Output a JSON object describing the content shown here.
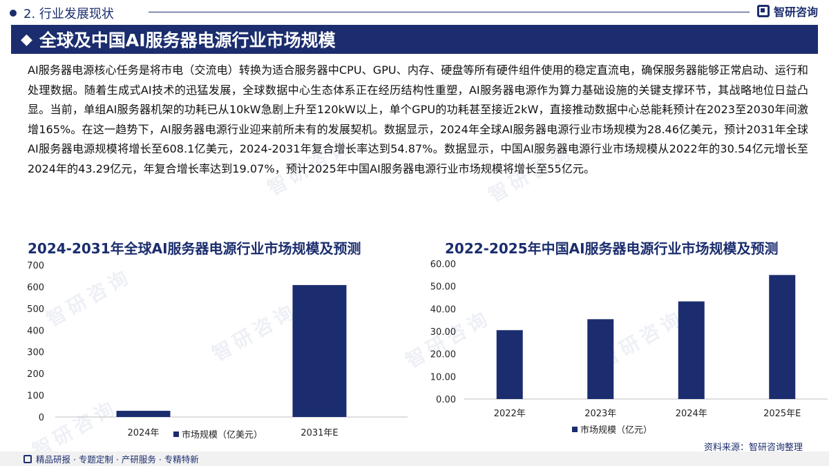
{
  "header": {
    "section": "2. 行业发展现状",
    "brand": "智研咨询"
  },
  "title": "全球及中国AI服务器电源行业市场规模",
  "intro": "AI服务器电源核心任务是将市电（交流电）转换为适合服务器中CPU、GPU、内存、硬盘等所有硬件组件使用的稳定直流电，确保服务器能够正常启动、运行和处理数据。随着生成式AI技术的迅猛发展，全球数据中心生态体系正在经历结构性重塑，AI服务器电源作为算力基础设施的关键支撑环节，其战略地位日益凸显。当前，单组AI服务器机架的功耗已从10kW急剧上升至120kW以上，单个GPU的功耗甚至接近2kW，直接推动数据中心总能耗预计在2023至2030年间激增165%。在这一趋势下，AI服务器电源行业迎来前所未有的发展契机。数据显示，2024年全球AI服务器电源行业市场规模为28.46亿美元，预计2031年全球AI服务器电源规模将增长至608.1亿美元，2024-2031年复合增长率达到54.87%。数据显示，中国AI服务器电源行业市场规模从2022年的30.54亿元增长至2024年的43.29亿元，年复合增长率达到19.07%，预计2025年中国AI服务器电源行业市场规模将增长至55亿元。",
  "chart_data": [
    {
      "type": "bar",
      "title": "2024-2031年全球AI服务器电源行业市场规模及预测",
      "categories": [
        "2024年",
        "2031年E"
      ],
      "series": [
        {
          "name": "市场规模（亿美元）",
          "values": [
            28.46,
            608.1
          ]
        }
      ],
      "ylim": [
        0,
        700
      ],
      "yticks": [
        "0",
        "100",
        "200",
        "300",
        "400",
        "500",
        "600",
        "700"
      ],
      "grid": false,
      "legend": "bottom",
      "color": "#1b2d6e"
    },
    {
      "type": "bar",
      "title": "2022-2025年中国AI服务器电源行业市场规模及预测",
      "categories": [
        "2022年",
        "2023年",
        "2024年",
        "2025年E"
      ],
      "series": [
        {
          "name": "市场规模（亿元）",
          "values": [
            30.54,
            35.4,
            43.29,
            55
          ]
        }
      ],
      "ylim": [
        0,
        60
      ],
      "yticks": [
        "0.00",
        "10.00",
        "20.00",
        "30.00",
        "40.00",
        "50.00",
        "60.00"
      ],
      "grid": false,
      "legend": "bottom",
      "color": "#1b2d6e"
    }
  ],
  "watermark": "智研咨询",
  "source": "资料来源：智研咨询整理",
  "footer": "精品研报 · 专题定制 · 产研服务 · 专精特新"
}
